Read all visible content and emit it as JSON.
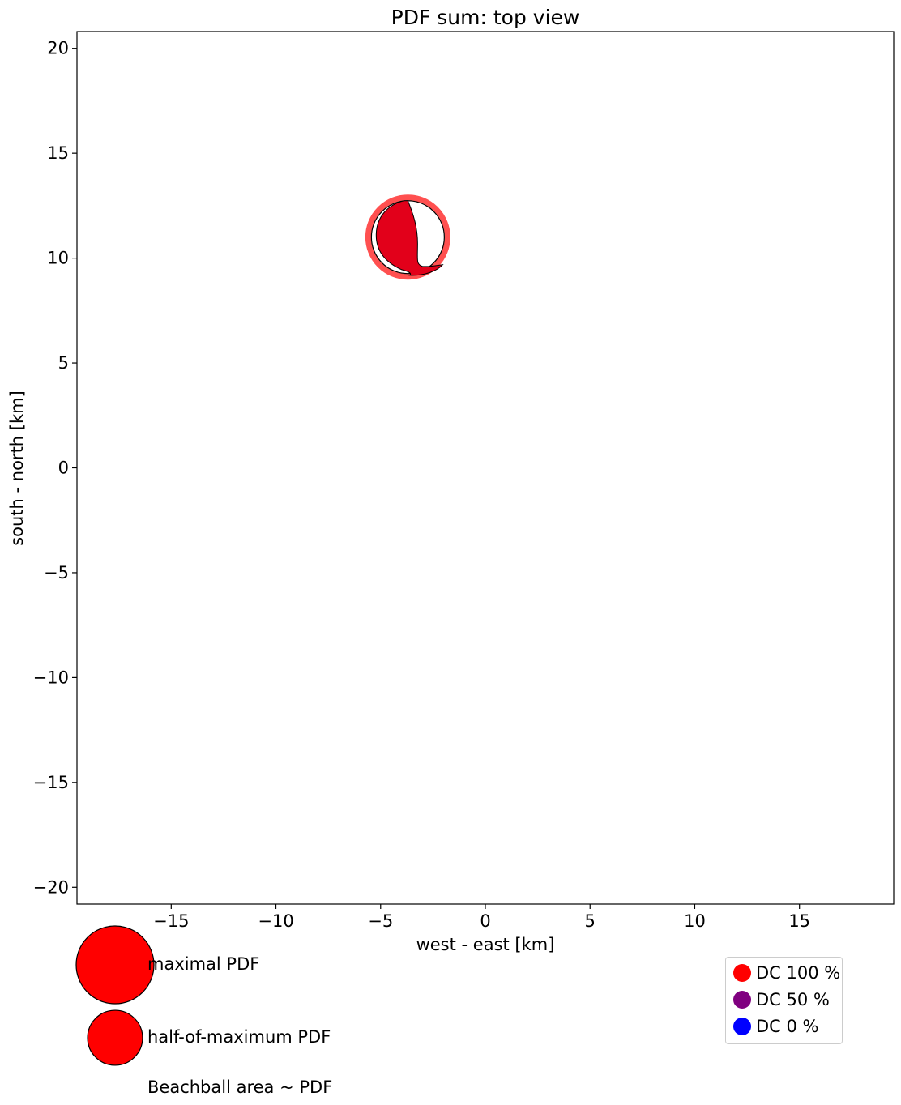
{
  "chart_data": {
    "type": "scatter",
    "title": "PDF sum: top view",
    "xlabel": "west - east [km]",
    "ylabel": "south - north [km]",
    "xlim": [
      -19.5,
      19.5
    ],
    "ylim": [
      -20.8,
      20.8
    ],
    "xticks": [
      -15,
      -10,
      -5,
      0,
      5,
      10,
      15
    ],
    "yticks": [
      -20,
      -15,
      -10,
      -5,
      0,
      5,
      10,
      15,
      20
    ],
    "xtick_labels": [
      "−15",
      "−10",
      "−5",
      "0",
      "5",
      "10",
      "15"
    ],
    "ytick_labels": [
      "−20",
      "−15",
      "−10",
      "−5",
      "0",
      "5",
      "10",
      "15",
      "20"
    ],
    "grid": false,
    "points": [
      {
        "x": -3.7,
        "y": 11.0,
        "pdf": 1.0,
        "dc_percent": 100
      }
    ],
    "colors": {
      "beachball_fill": "#e2001a",
      "pdf_ring": "#ff5050",
      "dc100": "#ff0000",
      "dc50": "#800080",
      "dc0": "#0000ff"
    },
    "size_legend": [
      {
        "label": "maximal PDF",
        "pdf": 1.0
      },
      {
        "label": "half-of-maximum PDF",
        "pdf": 0.5
      }
    ],
    "size_note": "Beachball area ~ PDF",
    "dc_legend": {
      "placement": "lower-right",
      "items": [
        {
          "label": "DC 100 %",
          "color": "#ff0000"
        },
        {
          "label": "DC 50 %",
          "color": "#800080"
        },
        {
          "label": "DC 0 %",
          "color": "#0000ff"
        }
      ]
    }
  }
}
